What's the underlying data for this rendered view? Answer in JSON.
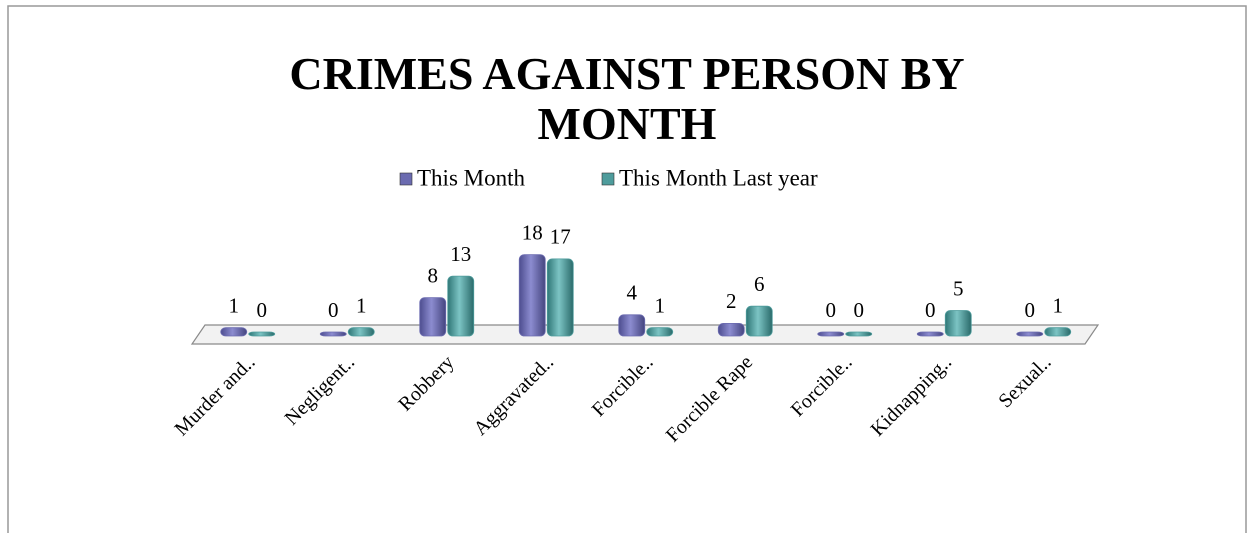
{
  "chart_data": {
    "type": "bar",
    "title": "CRIMES AGAINST PERSON BY MONTH",
    "categories": [
      "Murder and..",
      "Negligent..",
      "Robbery",
      "Aggravated..",
      "Forcible..",
      "Forcible Rape",
      "Forcible..",
      "Kidnapping..",
      "Sexual.."
    ],
    "series": [
      {
        "name": "This Month",
        "color": "#6b6bb0",
        "values": [
          1,
          0,
          8,
          18,
          4,
          2,
          0,
          0,
          0
        ]
      },
      {
        "name": "This Month Last year",
        "color": "#4e9c9c",
        "values": [
          0,
          1,
          13,
          17,
          1,
          6,
          0,
          5,
          1
        ]
      }
    ],
    "legend": "top"
  }
}
